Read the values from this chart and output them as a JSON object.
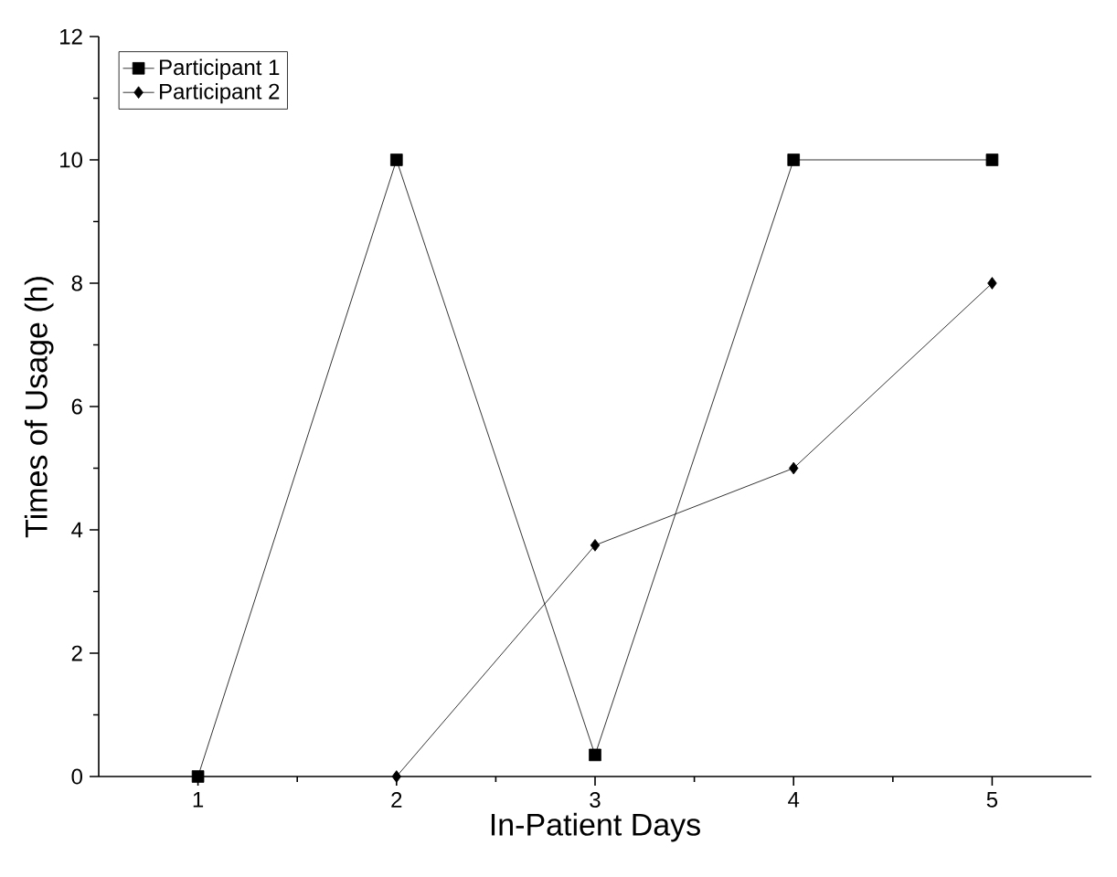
{
  "chart_data": {
    "type": "line",
    "xlabel": "In-Patient Days",
    "ylabel": "Times of Usage (h)",
    "x": [
      1,
      2,
      3,
      4,
      5
    ],
    "series": [
      {
        "name": "Participant 1",
        "color": "#000000",
        "marker": "square",
        "values": [
          0,
          10,
          0.35,
          10,
          10
        ]
      },
      {
        "name": "Participant 2",
        "color": "#000000",
        "marker": "diamond",
        "values": [
          null,
          0,
          3.75,
          5,
          8
        ]
      }
    ],
    "xlim": [
      0.5,
      5.5
    ],
    "xticks": [
      1,
      2,
      3,
      4,
      5
    ],
    "ylim": [
      0,
      12
    ],
    "yticks": [
      0,
      2,
      4,
      6,
      8,
      10,
      12
    ],
    "grid": false,
    "legend": "top left",
    "line_style": "solid"
  }
}
